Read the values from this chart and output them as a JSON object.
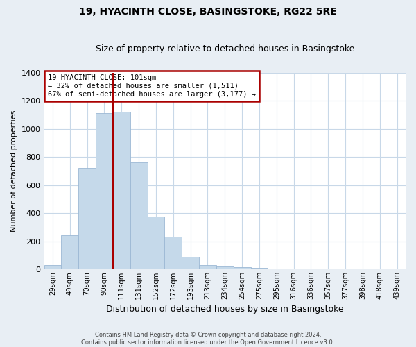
{
  "title": "19, HYACINTH CLOSE, BASINGSTOKE, RG22 5RE",
  "subtitle": "Size of property relative to detached houses in Basingstoke",
  "xlabel": "Distribution of detached houses by size in Basingstoke",
  "ylabel": "Number of detached properties",
  "bar_labels": [
    "29sqm",
    "49sqm",
    "70sqm",
    "90sqm",
    "111sqm",
    "131sqm",
    "152sqm",
    "172sqm",
    "193sqm",
    "213sqm",
    "234sqm",
    "254sqm",
    "275sqm",
    "295sqm",
    "316sqm",
    "336sqm",
    "357sqm",
    "377sqm",
    "398sqm",
    "418sqm",
    "439sqm"
  ],
  "bar_values": [
    30,
    240,
    720,
    1110,
    1120,
    760,
    375,
    230,
    90,
    30,
    20,
    15,
    10,
    0,
    0,
    0,
    0,
    0,
    0,
    0,
    0
  ],
  "bar_color": "#c5d9ea",
  "bar_edge_color": "#9cb8d4",
  "highlight_color": "#aa0000",
  "ylim": [
    0,
    1400
  ],
  "yticks": [
    0,
    200,
    400,
    600,
    800,
    1000,
    1200,
    1400
  ],
  "annotation_title": "19 HYACINTH CLOSE: 101sqm",
  "annotation_line1": "← 32% of detached houses are smaller (1,511)",
  "annotation_line2": "67% of semi-detached houses are larger (3,177) →",
  "annotation_box_color": "#ffffff",
  "annotation_box_edge": "#aa0000",
  "footer_line1": "Contains HM Land Registry data © Crown copyright and database right 2024.",
  "footer_line2": "Contains public sector information licensed under the Open Government Licence v3.0.",
  "background_color": "#e8eef4",
  "plot_background": "#ffffff",
  "grid_color": "#c8d8e8",
  "highlight_bar_index": 4,
  "title_fontsize": 10,
  "subtitle_fontsize": 9
}
